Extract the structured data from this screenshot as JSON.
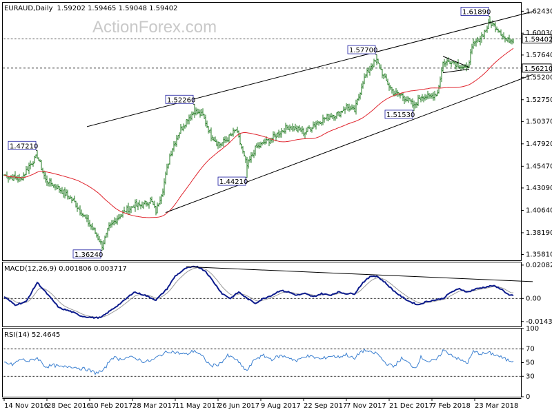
{
  "header": {
    "symbol": "EURAUD,Daily",
    "ohlc": "1.59202 1.59465 1.59048 1.59402"
  },
  "watermark": "ActionForex.com",
  "colors": {
    "candle": "#1f7a1f",
    "ma": "#e0242d",
    "macd": "#0b1a8c",
    "signal": "#9a9a9a",
    "rsi": "#3a7fd0",
    "channel": "#000000",
    "price_box": "#000000"
  },
  "chart_data": [
    {
      "type": "candlestick",
      "title": "EURAUD,Daily",
      "x_tick_labels": [
        "14 Nov 2016",
        "28 Dec 2016",
        "10 Feb 2017",
        "28 Mar 2017",
        "11 May 2017",
        "26 Jun 2017",
        "9 Aug 2017",
        "22 Sep 2017",
        "7 Nov 2017",
        "21 Dec 2017",
        "7 Feb 2018",
        "23 Mar 2018"
      ],
      "y_tick_labels": [
        "1.62430",
        "1.60030",
        "1.57640",
        "1.55200",
        "1.52750",
        "1.50370",
        "1.47920",
        "1.45470",
        "1.43090",
        "1.40640",
        "1.38190",
        "1.35810"
      ],
      "ylim": [
        1.3517,
        1.6336
      ],
      "price_markers": [
        "1.59402",
        "1.56210"
      ],
      "horizontal_levels": [
        1.59402,
        1.5621
      ],
      "annotations": [
        {
          "label": "1.47210",
          "value": 1.4721,
          "bar": 24
        },
        {
          "label": "1.36240",
          "value": 1.3624,
          "bar": 71
        },
        {
          "label": "1.52260",
          "value": 1.5226,
          "bar": 138
        },
        {
          "label": "1.44210",
          "value": 1.4421,
          "bar": 176
        },
        {
          "label": "1.57700",
          "value": 1.577,
          "bar": 270
        },
        {
          "label": "1.51530",
          "value": 1.5153,
          "bar": 297
        },
        {
          "label": "1.61890",
          "value": 1.6189,
          "bar": 352
        }
      ],
      "trendlines": [
        {
          "name": "upper channel",
          "from": {
            "bar": 60,
            "value": 1.498
          },
          "to": {
            "bar": 383,
            "value": 1.624
          }
        },
        {
          "name": "lower channel",
          "from": {
            "bar": 117,
            "value": 1.404
          },
          "to": {
            "bar": 383,
            "value": 1.555
          }
        },
        {
          "name": "triangle top",
          "from": {
            "bar": 318,
            "value": 1.575
          },
          "to": {
            "bar": 337,
            "value": 1.563
          }
        },
        {
          "name": "triangle bottom",
          "from": {
            "bar": 318,
            "value": 1.557
          },
          "to": {
            "bar": 337,
            "value": 1.561
          }
        }
      ],
      "price_anchors": [
        [
          0,
          1.445
        ],
        [
          12,
          1.44
        ],
        [
          18,
          1.455
        ],
        [
          24,
          1.466
        ],
        [
          30,
          1.44
        ],
        [
          40,
          1.43
        ],
        [
          50,
          1.417
        ],
        [
          60,
          1.395
        ],
        [
          66,
          1.382
        ],
        [
          71,
          1.368
        ],
        [
          76,
          1.387
        ],
        [
          82,
          1.398
        ],
        [
          88,
          1.406
        ],
        [
          94,
          1.412
        ],
        [
          100,
          1.412
        ],
        [
          106,
          1.418
        ],
        [
          110,
          1.405
        ],
        [
          115,
          1.43
        ],
        [
          120,
          1.466
        ],
        [
          126,
          1.49
        ],
        [
          132,
          1.505
        ],
        [
          138,
          1.515
        ],
        [
          144,
          1.51
        ],
        [
          150,
          1.488
        ],
        [
          156,
          1.478
        ],
        [
          162,
          1.485
        ],
        [
          168,
          1.495
        ],
        [
          172,
          1.475
        ],
        [
          176,
          1.455
        ],
        [
          182,
          1.474
        ],
        [
          188,
          1.48
        ],
        [
          194,
          1.485
        ],
        [
          200,
          1.492
        ],
        [
          206,
          1.498
        ],
        [
          212,
          1.495
        ],
        [
          218,
          1.492
        ],
        [
          224,
          1.5
        ],
        [
          230,
          1.505
        ],
        [
          236,
          1.51
        ],
        [
          242,
          1.512
        ],
        [
          248,
          1.52
        ],
        [
          254,
          1.515
        ],
        [
          260,
          1.548
        ],
        [
          266,
          1.565
        ],
        [
          270,
          1.57
        ],
        [
          276,
          1.55
        ],
        [
          282,
          1.535
        ],
        [
          288,
          1.532
        ],
        [
          294,
          1.525
        ],
        [
          297,
          1.52
        ],
        [
          302,
          1.532
        ],
        [
          308,
          1.53
        ],
        [
          314,
          1.535
        ],
        [
          318,
          1.568
        ],
        [
          324,
          1.57
        ],
        [
          330,
          1.565
        ],
        [
          335,
          1.56
        ],
        [
          340,
          1.588
        ],
        [
          346,
          1.597
        ],
        [
          352,
          1.612
        ],
        [
          358,
          1.605
        ],
        [
          364,
          1.592
        ],
        [
          368,
          1.594
        ]
      ],
      "moving_average": {
        "type": "sma",
        "color": "#e0242d"
      }
    },
    {
      "type": "line",
      "title": "MACD(12,26,9) 0.001806 0.003717",
      "series": [
        {
          "name": "MACD",
          "anchors": [
            [
              0,
              0.001
            ],
            [
              8,
              -0.004
            ],
            [
              16,
              -0.002
            ],
            [
              24,
              0.01
            ],
            [
              32,
              0.002
            ],
            [
              40,
              -0.006
            ],
            [
              48,
              -0.008
            ],
            [
              56,
              -0.011
            ],
            [
              64,
              -0.012
            ],
            [
              70,
              -0.012
            ],
            [
              78,
              -0.007
            ],
            [
              86,
              -0.002
            ],
            [
              94,
              0.004
            ],
            [
              102,
              0.002
            ],
            [
              110,
              -0.001
            ],
            [
              118,
              0.006
            ],
            [
              124,
              0.014
            ],
            [
              132,
              0.019
            ],
            [
              140,
              0.02
            ],
            [
              146,
              0.017
            ],
            [
              152,
              0.01
            ],
            [
              158,
              0.003
            ],
            [
              164,
              0.0
            ],
            [
              170,
              0.004
            ],
            [
              176,
              0.0
            ],
            [
              182,
              -0.003
            ],
            [
              188,
              0.0
            ],
            [
              194,
              0.002
            ],
            [
              200,
              0.005
            ],
            [
              206,
              0.004
            ],
            [
              212,
              0.002
            ],
            [
              218,
              0.003
            ],
            [
              224,
              0.001
            ],
            [
              230,
              0.003
            ],
            [
              236,
              0.002
            ],
            [
              242,
              0.004
            ],
            [
              248,
              0.003
            ],
            [
              254,
              0.003
            ],
            [
              260,
              0.01
            ],
            [
              266,
              0.014
            ],
            [
              270,
              0.014
            ],
            [
              276,
              0.01
            ],
            [
              282,
              0.005
            ],
            [
              288,
              0.001
            ],
            [
              294,
              -0.002
            ],
            [
              300,
              -0.004
            ],
            [
              306,
              -0.002
            ],
            [
              312,
              -0.001
            ],
            [
              318,
              0.0
            ],
            [
              324,
              0.004
            ],
            [
              330,
              0.006
            ],
            [
              336,
              0.004
            ],
            [
              342,
              0.006
            ],
            [
              348,
              0.007
            ],
            [
              354,
              0.008
            ],
            [
              360,
              0.006
            ],
            [
              366,
              0.002
            ],
            [
              368,
              0.0018
            ]
          ]
        },
        {
          "name": "Signal",
          "anchors": "EMA(9) of MACD"
        }
      ],
      "y_tick_labels": [
        "0.020827",
        "0.00",
        "-0.014386"
      ],
      "ylim": [
        -0.0175,
        0.0225
      ],
      "zero_line": true,
      "trendline": {
        "from": {
          "bar": 132,
          "value": 0.0198
        },
        "to": {
          "bar": 383,
          "value": 0.0105
        }
      }
    },
    {
      "type": "line",
      "title": "RSI(14) 52.4645",
      "series": [
        {
          "name": "RSI(14)",
          "anchors": [
            [
              0,
              50
            ],
            [
              6,
              47
            ],
            [
              12,
              55
            ],
            [
              18,
              52
            ],
            [
              24,
              57
            ],
            [
              30,
              44
            ],
            [
              36,
              46
            ],
            [
              42,
              43
            ],
            [
              48,
              45
            ],
            [
              54,
              42
            ],
            [
              60,
              40
            ],
            [
              66,
              35
            ],
            [
              72,
              38
            ],
            [
              78,
              58
            ],
            [
              84,
              55
            ],
            [
              90,
              58
            ],
            [
              96,
              56
            ],
            [
              102,
              51
            ],
            [
              108,
              54
            ],
            [
              114,
              62
            ],
            [
              120,
              67
            ],
            [
              126,
              64
            ],
            [
              132,
              62
            ],
            [
              138,
              68
            ],
            [
              144,
              58
            ],
            [
              150,
              45
            ],
            [
              156,
              48
            ],
            [
              162,
              60
            ],
            [
              168,
              55
            ],
            [
              172,
              45
            ],
            [
              176,
              38
            ],
            [
              182,
              56
            ],
            [
              188,
              60
            ],
            [
              194,
              55
            ],
            [
              200,
              60
            ],
            [
              206,
              58
            ],
            [
              212,
              52
            ],
            [
              218,
              60
            ],
            [
              224,
              58
            ],
            [
              230,
              55
            ],
            [
              236,
              60
            ],
            [
              242,
              58
            ],
            [
              248,
              62
            ],
            [
              254,
              55
            ],
            [
              258,
              66
            ],
            [
              262,
              68
            ],
            [
              266,
              64
            ],
            [
              270,
              64
            ],
            [
              276,
              50
            ],
            [
              282,
              44
            ],
            [
              288,
              56
            ],
            [
              294,
              48
            ],
            [
              298,
              42
            ],
            [
              302,
              58
            ],
            [
              308,
              51
            ],
            [
              314,
              55
            ],
            [
              318,
              68
            ],
            [
              324,
              62
            ],
            [
              330,
              54
            ],
            [
              336,
              50
            ],
            [
              340,
              66
            ],
            [
              346,
              63
            ],
            [
              352,
              64
            ],
            [
              358,
              60
            ],
            [
              364,
              54
            ],
            [
              368,
              52.46
            ]
          ]
        }
      ],
      "y_tick_labels": [
        "100",
        "70",
        "50",
        "30",
        "0"
      ],
      "ylim": [
        0,
        100
      ],
      "reference_lines": [
        70,
        30
      ]
    }
  ]
}
